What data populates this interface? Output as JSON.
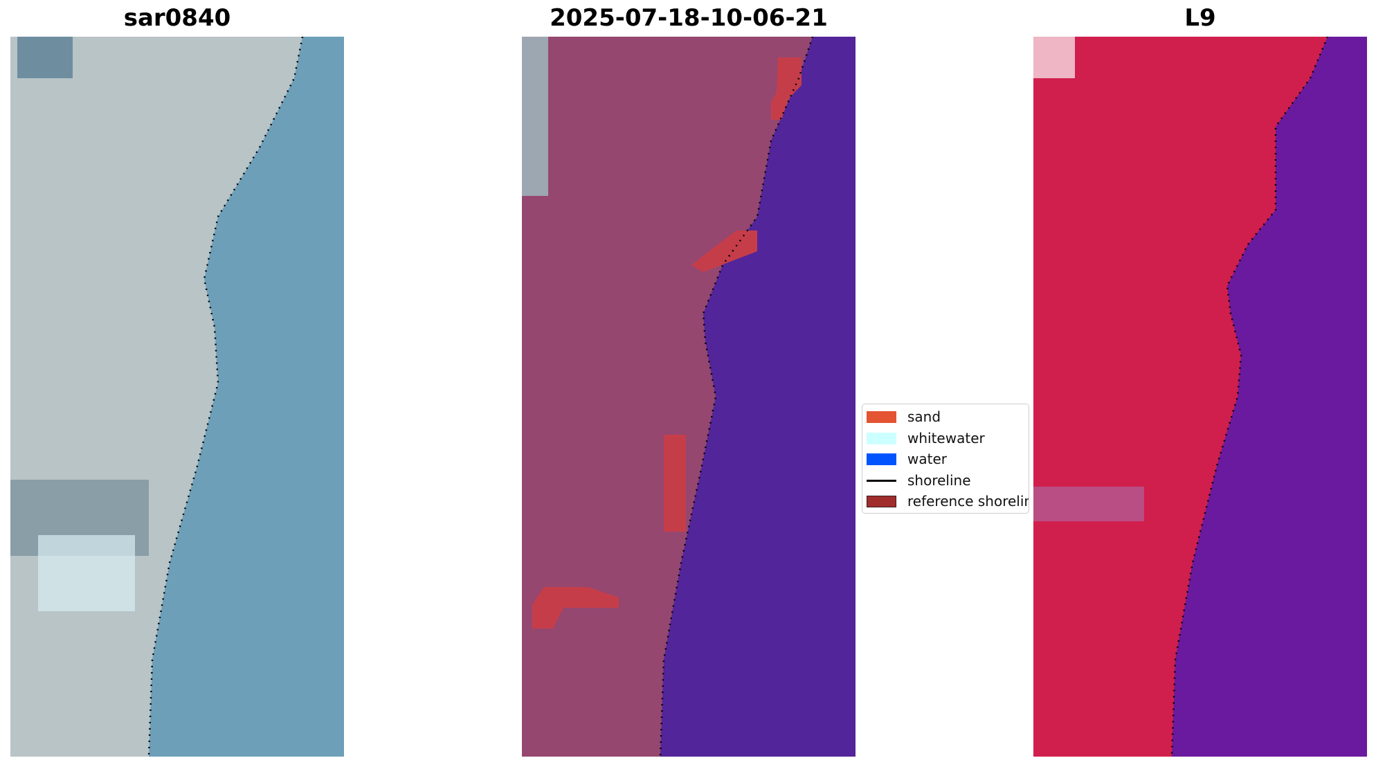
{
  "panels": [
    {
      "title": "sar0840",
      "kind": "rgb"
    },
    {
      "title": "2025-07-18-10-06-21",
      "kind": "classified"
    },
    {
      "title": "L9",
      "kind": "falsecolor"
    }
  ],
  "legend": {
    "items": [
      {
        "label": "sand",
        "color": "#e45332",
        "style": "patch"
      },
      {
        "label": "whitewater",
        "color": "#ccffff",
        "style": "patch"
      },
      {
        "label": "water",
        "color": "#0055ff",
        "style": "patch"
      },
      {
        "label": "shoreline",
        "color": "#000000",
        "style": "line"
      },
      {
        "label": "reference shoreline",
        "color": "#a02c2c",
        "style": "patch"
      }
    ]
  },
  "colors": {
    "rgb_land": "#b9c4c6",
    "rgb_water": "#6d9fb9",
    "class_land": "#95476f",
    "class_water": "#53259a",
    "class_sand": "#c63d4a",
    "false_land": "#d01f4c",
    "false_water": "#6a1a9e"
  }
}
